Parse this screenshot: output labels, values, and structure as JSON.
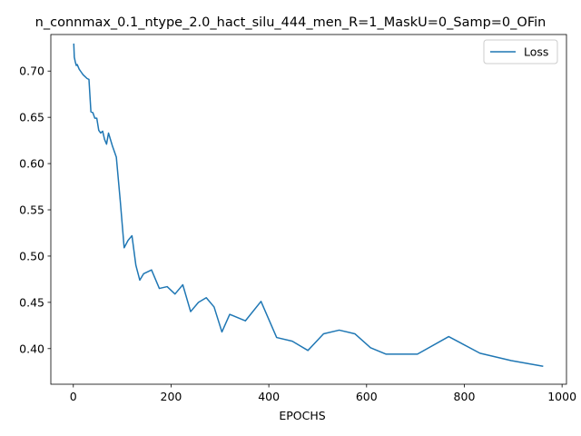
{
  "chart_data": {
    "type": "line",
    "title": "n_connmax_0.1_ntype_2.0_hact_silu_444_men_R=1_MaskU=0_Samp=0_OFin",
    "xlabel": "EPOCHS",
    "ylabel": "",
    "xlim": [
      -46,
      1009
    ],
    "ylim": [
      0.3615,
      0.7395
    ],
    "xticks": [
      0,
      200,
      400,
      600,
      800,
      1000
    ],
    "yticks": [
      0.4,
      0.45,
      0.5,
      0.55,
      0.6,
      0.65,
      0.7
    ],
    "grid": false,
    "legend_position": "top-right",
    "series": [
      {
        "name": "Loss",
        "color": "#1f77b4",
        "x": [
          1,
          2,
          4,
          6,
          8,
          12,
          16,
          20,
          24,
          28,
          32,
          36,
          40,
          44,
          48,
          52,
          56,
          60,
          64,
          68,
          72,
          80,
          88,
          96,
          104,
          112,
          120,
          128,
          136,
          144,
          160,
          176,
          192,
          208,
          224,
          240,
          256,
          272,
          288,
          304,
          320,
          352,
          384,
          416,
          448,
          480,
          512,
          544,
          576,
          608,
          640,
          704,
          768,
          832,
          896,
          960
        ],
        "y": [
          0.729,
          0.715,
          0.71,
          0.706,
          0.707,
          0.702,
          0.699,
          0.696,
          0.694,
          0.692,
          0.691,
          0.656,
          0.655,
          0.649,
          0.649,
          0.636,
          0.633,
          0.635,
          0.626,
          0.621,
          0.633,
          0.619,
          0.607,
          0.56,
          0.509,
          0.517,
          0.522,
          0.49,
          0.474,
          0.481,
          0.485,
          0.465,
          0.467,
          0.459,
          0.469,
          0.44,
          0.45,
          0.455,
          0.445,
          0.418,
          0.437,
          0.43,
          0.451,
          0.412,
          0.408,
          0.398,
          0.416,
          0.42,
          0.416,
          0.401,
          0.394,
          0.394,
          0.413,
          0.395,
          0.387,
          0.381
        ]
      }
    ]
  }
}
